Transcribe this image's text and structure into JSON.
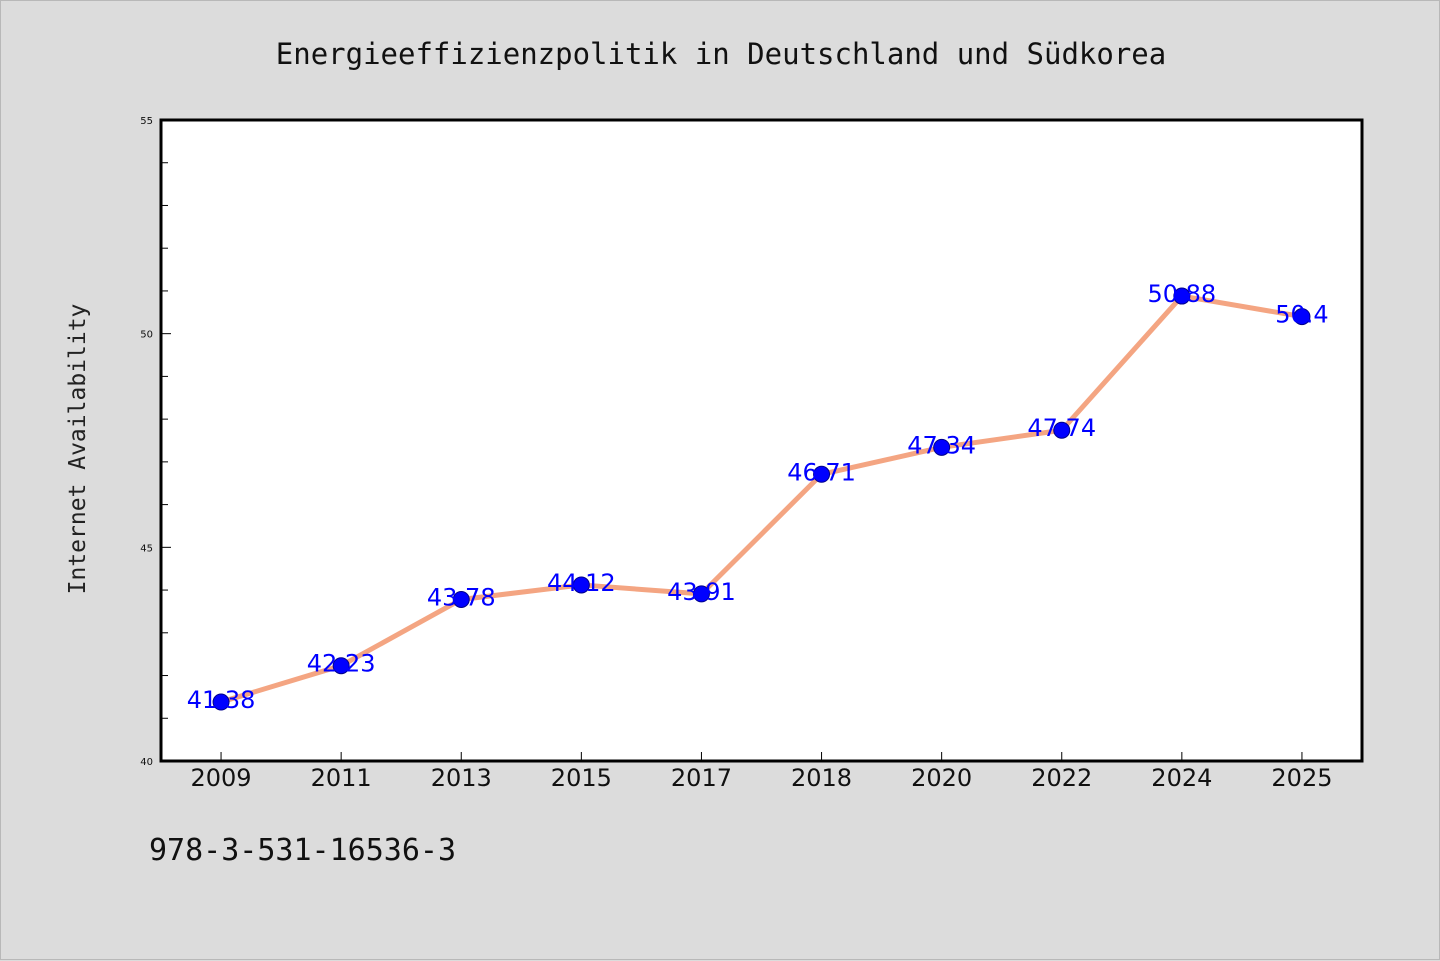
{
  "chart_data": {
    "type": "line",
    "title": "Energieeffizienzpolitik in Deutschland und Südkorea",
    "xlabel": "",
    "ylabel": "Internet Availability",
    "categories": [
      "2009",
      "2011",
      "2013",
      "2015",
      "2017",
      "2018",
      "2020",
      "2022",
      "2024",
      "2025"
    ],
    "series": [
      {
        "values": [
          41.38,
          42.23,
          43.78,
          44.12,
          43.91,
          46.71,
          47.34,
          47.74,
          50.88,
          50.4
        ],
        "labels": [
          "41.38",
          "42.23",
          "43.78",
          "44.12",
          "43.91",
          "46.71",
          "47.34",
          "47.74",
          "50.88",
          "50.4"
        ],
        "line_color": "#f4a582",
        "marker_color": "#0000ff"
      }
    ],
    "ylim": [
      40,
      55
    ],
    "yticks": [
      "40",
      "45",
      "50",
      "55"
    ],
    "grid": false,
    "background": "#ffffff"
  },
  "footnote": "978-3-531-16536-3"
}
